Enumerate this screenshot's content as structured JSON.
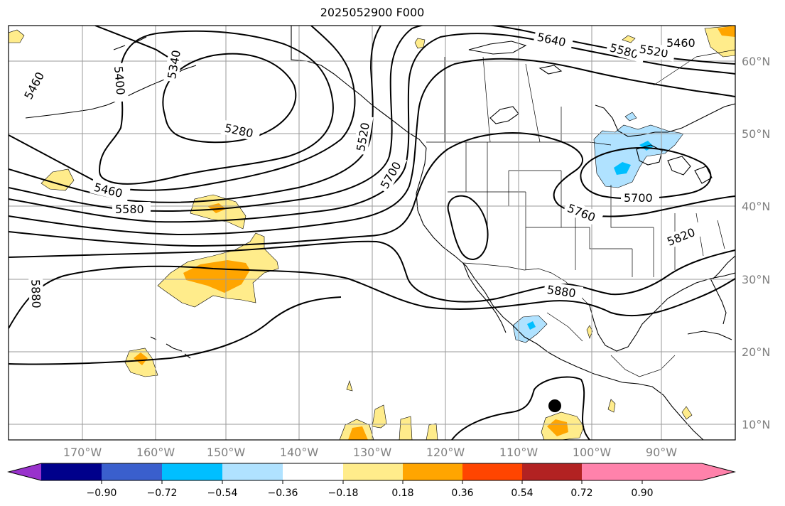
{
  "title": "2025052900 F000",
  "longitude_labels": [
    "170°W",
    "160°W",
    "150°W",
    "140°W",
    "130°W",
    "120°W",
    "110°W",
    "100°W",
    "90°W"
  ],
  "latitude_labels": [
    "60°N",
    "50°N",
    "40°N",
    "30°N",
    "20°N",
    "10°N"
  ],
  "contour_labels": [
    "5640",
    "5580",
    "5520",
    "5460",
    "5460",
    "5400",
    "5340",
    "5280",
    "5460",
    "5580",
    "5520",
    "5700",
    "5700",
    "5760",
    "5820",
    "5880",
    "5880"
  ],
  "colorbar": {
    "tick_labels": [
      "−0.90",
      "−0.72",
      "−0.54",
      "−0.36",
      "−0.18",
      "0.18",
      "0.36",
      "0.54",
      "0.72",
      "0.90"
    ],
    "colors": [
      "#9932cc",
      "#00008b",
      "#3a5fcd",
      "#00bfff",
      "#b0e2ff",
      "#ffffff",
      "#ffec8b",
      "#ffa500",
      "#ff4500",
      "#b22222",
      "#ff82ab"
    ]
  },
  "shading_colors": {
    "light_yellow": "#ffec8b",
    "orange": "#ffa500",
    "light_blue": "#b0e2ff",
    "blue": "#00bfff"
  },
  "marker": "storm-center-dot"
}
